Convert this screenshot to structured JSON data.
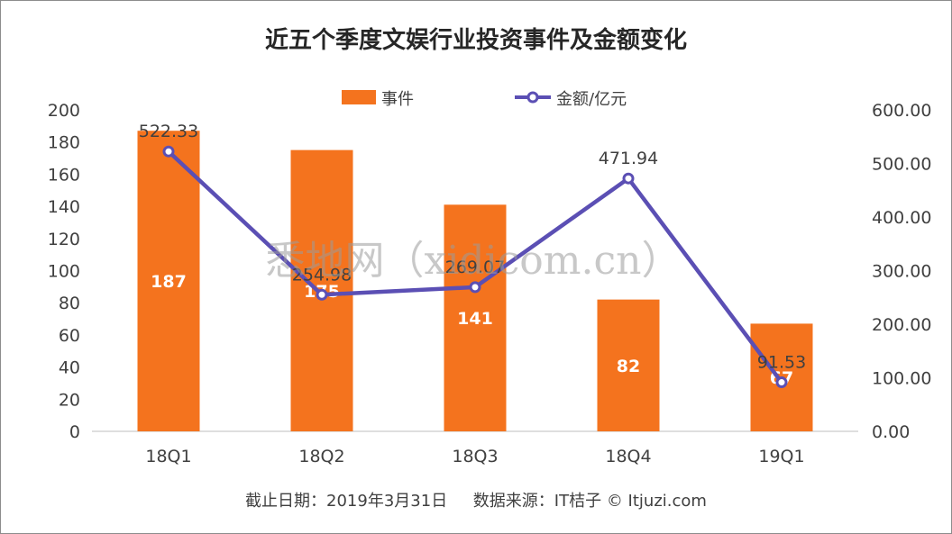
{
  "chart_data": {
    "type": "bar",
    "title": "近五个季度文娱行业投资事件及金额变化",
    "categories": [
      "18Q1",
      "18Q2",
      "18Q3",
      "18Q4",
      "19Q1"
    ],
    "series": [
      {
        "name": "事件",
        "type": "bar",
        "axis": "left",
        "values": [
          187,
          175,
          141,
          82,
          67
        ],
        "color": "#F4731E"
      },
      {
        "name": "金额/亿元",
        "type": "line",
        "axis": "right",
        "values": [
          522.33,
          254.98,
          269.07,
          471.94,
          91.53
        ],
        "value_labels": [
          "522.33",
          "254.98",
          "269.07",
          "471.94",
          "91.53"
        ],
        "color": "#5B4FB4"
      }
    ],
    "y_left": {
      "ylim": [
        0,
        200
      ],
      "ticks": [
        "0",
        "20",
        "40",
        "60",
        "80",
        "100",
        "120",
        "140",
        "160",
        "180",
        "200"
      ]
    },
    "y_right": {
      "ylim": [
        0,
        600
      ],
      "ticks": [
        "0.00",
        "100.00",
        "200.00",
        "300.00",
        "400.00",
        "500.00",
        "600.00"
      ]
    },
    "legend": "top",
    "grid": false
  },
  "footer": {
    "source": "截止日期：2019年3月31日     数据来源：IT桔子 © Itjuzi.com"
  },
  "watermark": "悉地网（xidicom.cn）"
}
